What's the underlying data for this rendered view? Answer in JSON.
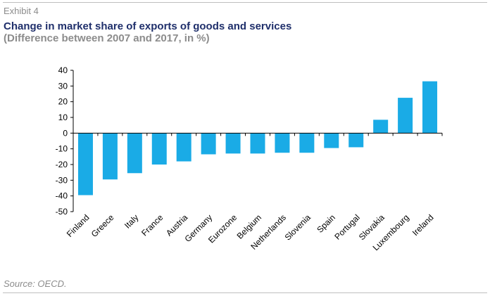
{
  "header": {
    "exhibit": "Exhibit 4",
    "title": "Change in market share of exports of goods and services",
    "subtitle": "(Difference between 2007 and 2017, in %)"
  },
  "footer": {
    "source": "Source: OECD."
  },
  "chart_data": {
    "type": "bar",
    "title": "Change in market share of exports of goods and services",
    "subtitle": "(Difference between 2007 and 2017, in %)",
    "xlabel": "",
    "ylabel": "",
    "categories": [
      "Finland",
      "Greece",
      "Italy",
      "France",
      "Austria",
      "Germany",
      "Eurozone",
      "Belgium",
      "Netherlands",
      "Slovenia",
      "Spain",
      "Portugal",
      "Slovakia",
      "Luxembourg",
      "Ireland"
    ],
    "values": [
      -39.5,
      -29.5,
      -25.5,
      -20,
      -18,
      -13.5,
      -13,
      -13,
      -12.5,
      -12.5,
      -9.5,
      -9,
      8.5,
      22.5,
      33
    ],
    "ylim": [
      -50,
      40
    ],
    "yticks": [
      "40",
      "30",
      "20",
      "10",
      "0",
      "-10",
      "-20",
      "-30",
      "-40",
      "-50"
    ],
    "bar_color": "#1aabe6",
    "grid": false,
    "legend": "none"
  }
}
